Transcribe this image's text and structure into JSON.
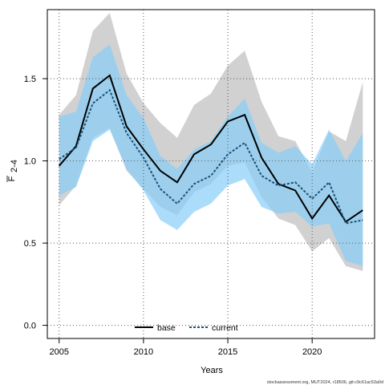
{
  "chart_data": {
    "type": "line",
    "xlabel": "Years",
    "ylabel_main": "F",
    "ylabel_sub": "2-4",
    "xlim": [
      2004.3,
      2023.7
    ],
    "ylim": [
      -0.08,
      1.92
    ],
    "xticks": [
      2005,
      2010,
      2015,
      2020
    ],
    "yticks": [
      0.0,
      0.5,
      1.0,
      1.5
    ],
    "ytick_labels": [
      "0.0",
      "0.5",
      "1.0",
      "1.5"
    ],
    "grid": true,
    "legend_position": "bottom",
    "x": [
      2005,
      2006,
      2007,
      2008,
      2009,
      2010,
      2011,
      2012,
      2013,
      2014,
      2015,
      2016,
      2017,
      2018,
      2019,
      2020,
      2021,
      2022,
      2023
    ],
    "series": [
      {
        "name": "base",
        "color": "#000000",
        "band_color": "#bebebe",
        "line_style": "solid",
        "values": [
          0.97,
          1.09,
          1.44,
          1.52,
          1.21,
          1.07,
          0.94,
          0.87,
          1.04,
          1.1,
          1.24,
          1.28,
          1.02,
          0.86,
          0.82,
          0.65,
          0.79,
          0.63,
          0.7
        ],
        "lower": [
          0.73,
          0.85,
          1.14,
          1.2,
          0.94,
          0.83,
          0.72,
          0.67,
          0.81,
          0.86,
          0.97,
          0.99,
          0.78,
          0.65,
          0.61,
          0.45,
          0.53,
          0.36,
          0.33
        ],
        "upper": [
          1.28,
          1.4,
          1.79,
          1.9,
          1.53,
          1.35,
          1.23,
          1.14,
          1.34,
          1.41,
          1.58,
          1.67,
          1.36,
          1.15,
          1.12,
          0.93,
          1.18,
          1.12,
          1.48
        ]
      },
      {
        "name": "current",
        "color": "#1a5278",
        "band_color": "#87cefa",
        "line_style": "dashed",
        "values": [
          1.01,
          1.08,
          1.35,
          1.43,
          1.17,
          1.02,
          0.83,
          0.74,
          0.86,
          0.91,
          1.04,
          1.11,
          0.91,
          0.85,
          0.87,
          0.77,
          0.87,
          0.62,
          0.64
        ],
        "lower": [
          0.79,
          0.84,
          1.12,
          1.19,
          0.95,
          0.82,
          0.64,
          0.58,
          0.69,
          0.74,
          0.85,
          0.89,
          0.72,
          0.68,
          0.69,
          0.6,
          0.62,
          0.39,
          0.36
        ],
        "upper": [
          1.27,
          1.3,
          1.63,
          1.71,
          1.4,
          1.26,
          1.03,
          0.95,
          1.07,
          1.12,
          1.27,
          1.38,
          1.11,
          1.05,
          1.09,
          0.98,
          1.19,
          1.0,
          1.17
        ]
      }
    ]
  },
  "legend": {
    "base_label": "base",
    "current_label": "current"
  },
  "credit": "stockassessment.org, MUT2024, r18506, git:c9c61ac53a0d"
}
